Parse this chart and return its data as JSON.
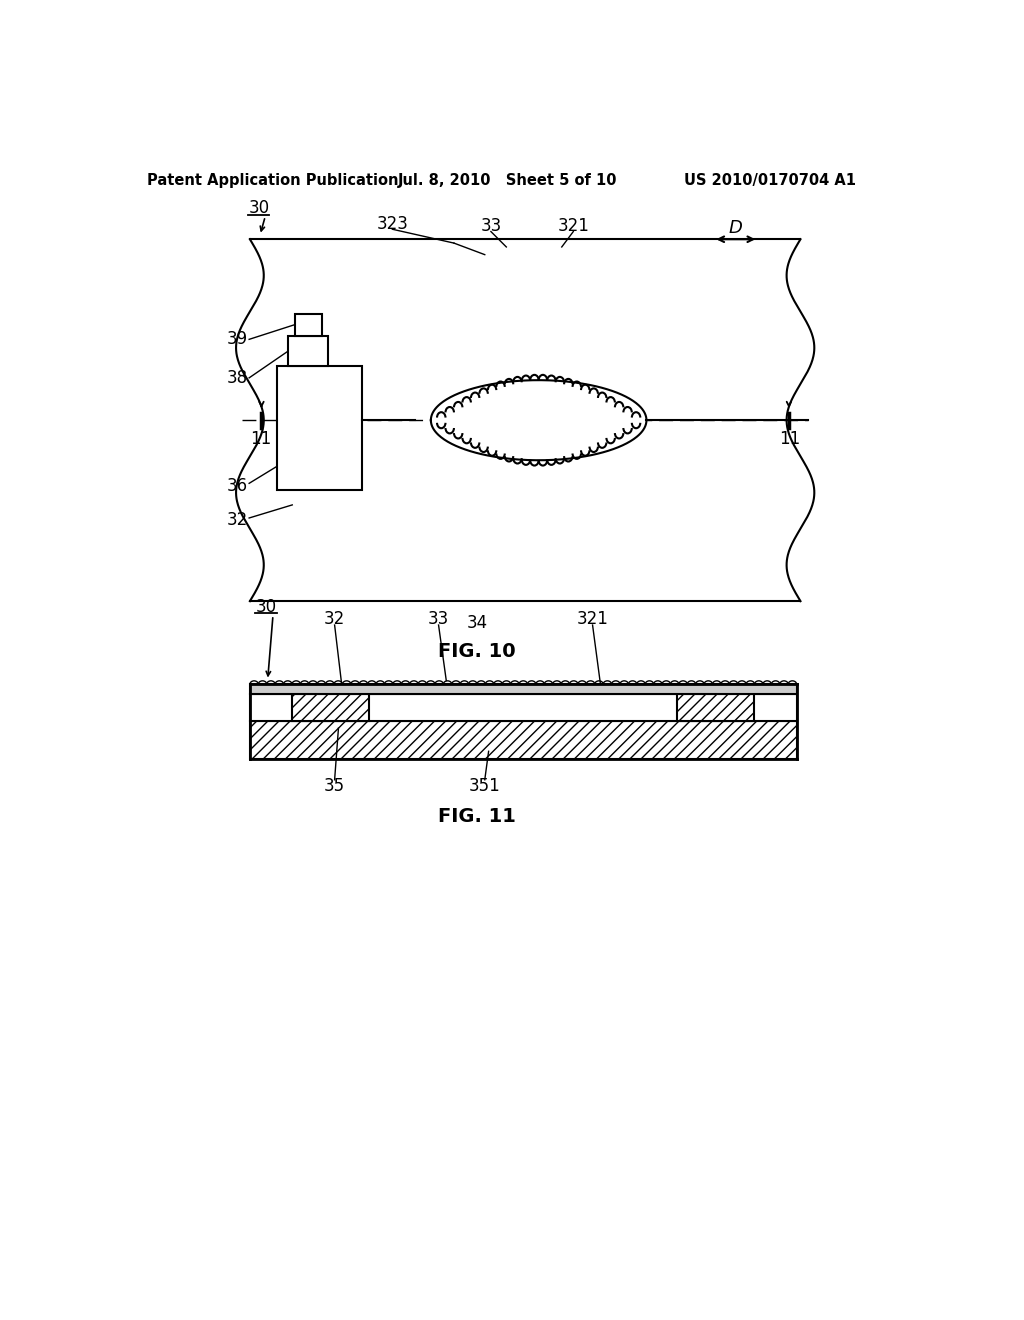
{
  "bg_color": "#ffffff",
  "text_color": "#000000",
  "header_left": "Patent Application Publication",
  "header_mid": "Jul. 8, 2010   Sheet 5 of 10",
  "header_right": "US 2010/0170704 A1",
  "fig10_label": "FIG. 10",
  "fig11_label": "FIG. 11",
  "line_color": "#000000",
  "label_fontsize": 12,
  "header_fontsize": 10.5,
  "fig_label_fontsize": 14
}
